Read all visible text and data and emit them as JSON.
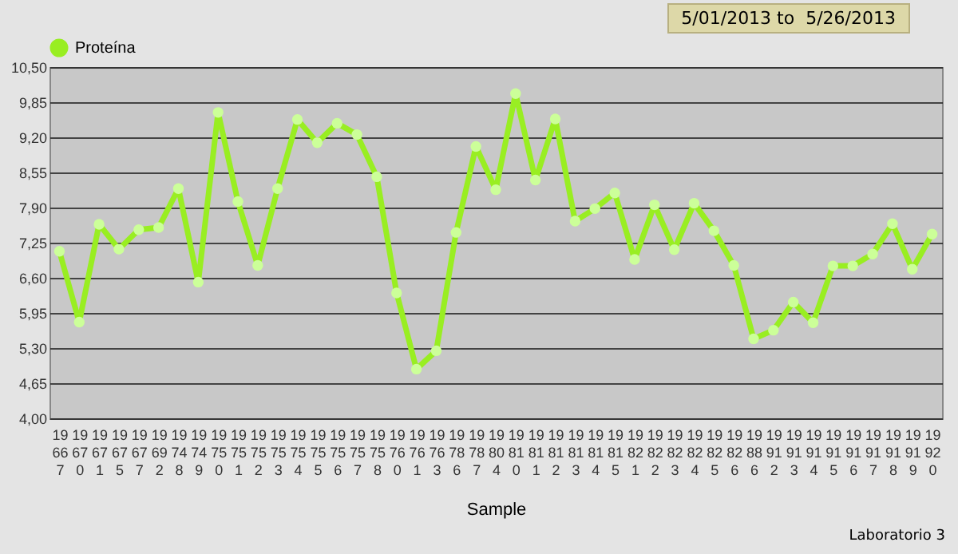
{
  "chart_data": {
    "type": "line",
    "xlabel": "Sample",
    "categories": [
      "19667",
      "19670",
      "19671",
      "19675",
      "19677",
      "19692",
      "19748",
      "19749",
      "19750",
      "19751",
      "19752",
      "19753",
      "19754",
      "19755",
      "19756",
      "19757",
      "19758",
      "19760",
      "19761",
      "19763",
      "19786",
      "19787",
      "19804",
      "19810",
      "19811",
      "19812",
      "19813",
      "19814",
      "19815",
      "19821",
      "19822",
      "19823",
      "19824",
      "19825",
      "19826",
      "19886",
      "19912",
      "19913",
      "19914",
      "19915",
      "19916",
      "19917",
      "19918",
      "19919",
      "19920"
    ],
    "series": [
      {
        "name": "Proteína",
        "color": "#99ee22",
        "values": [
          7.09,
          5.78,
          7.59,
          7.13,
          7.49,
          7.53,
          8.25,
          6.52,
          9.66,
          8.01,
          6.83,
          8.25,
          9.53,
          9.1,
          9.46,
          9.25,
          8.47,
          6.32,
          4.91,
          5.25,
          7.44,
          9.03,
          8.23,
          10.01,
          8.41,
          9.54,
          7.65,
          7.88,
          8.17,
          6.94,
          7.95,
          7.12,
          7.98,
          7.47,
          6.83,
          5.47,
          5.63,
          6.15,
          5.77,
          6.82,
          6.82,
          7.04,
          7.6,
          6.76,
          7.41
        ]
      }
    ],
    "ylim": [
      4,
      10.5
    ],
    "yticks": [
      {
        "value": 4,
        "label": "4,00"
      },
      {
        "value": 4.65,
        "label": "4,65"
      },
      {
        "value": 5.3,
        "label": "5,30"
      },
      {
        "value": 5.95,
        "label": "5,95"
      },
      {
        "value": 6.6,
        "label": "6,60"
      },
      {
        "value": 7.25,
        "label": "7,25"
      },
      {
        "value": 7.9,
        "label": "7,90"
      },
      {
        "value": 8.55,
        "label": "8,55"
      },
      {
        "value": 9.2,
        "label": "9,20"
      },
      {
        "value": 9.85,
        "label": "9,85"
      },
      {
        "value": 10.5,
        "label": "10,50"
      }
    ],
    "grid": "y",
    "legend": "top",
    "marker": "circle",
    "line_style": "solid",
    "annotations": [
      "5/01/2013 to  5/26/2013",
      "Laboratorio 3"
    ]
  }
}
